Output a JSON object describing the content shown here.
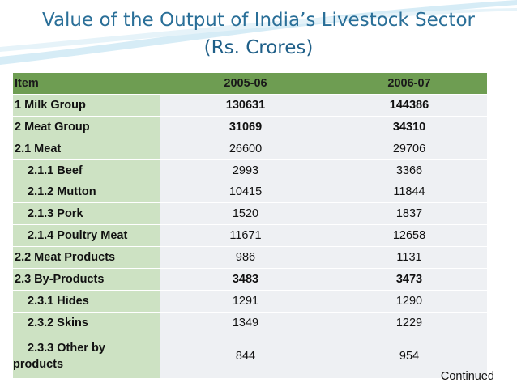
{
  "title": {
    "line1": "Value of the Output of India’s Livestock Sector",
    "line2": "(Rs. Crores)"
  },
  "table": {
    "headers": [
      "Item",
      "2005-06",
      "2006-07"
    ],
    "rows": [
      {
        "item": "1 Milk Group",
        "v1": "130631",
        "v2": "144386"
      },
      {
        "item": "2 Meat Group",
        "v1": "31069",
        "v2": "34310"
      },
      {
        "item": "2.1 Meat",
        "v1": "26600",
        "v2": "29706"
      },
      {
        "item": "2.1.1 Beef",
        "v1": "2993",
        "v2": "3366"
      },
      {
        "item": "2.1.2 Mutton",
        "v1": "10415",
        "v2": "11844"
      },
      {
        "item": "2.1.3 Pork",
        "v1": "1520",
        "v2": "1837"
      },
      {
        "item": "2.1.4 Poultry Meat",
        "v1": "11671",
        "v2": "12658"
      },
      {
        "item": "2.2 Meat Products",
        "v1": "986",
        "v2": "1131"
      },
      {
        "item": "2.3 By-Products",
        "v1": "3483",
        "v2": "3473"
      },
      {
        "item": "2.3.1 Hides",
        "v1": "1291",
        "v2": "1290"
      },
      {
        "item": "2.3.2 Skins",
        "v1": "1349",
        "v2": "1229"
      },
      {
        "item_line1": "2.3.3 Other by",
        "item_line2": "products",
        "v1": "844",
        "v2": "954"
      }
    ]
  },
  "footer": {
    "continued": "Continued"
  },
  "colors": {
    "title": "#2a6f98",
    "header_bg": "#6e9d52",
    "item_bg": "#cde2c3",
    "cell_bg": "#eef0f3"
  }
}
